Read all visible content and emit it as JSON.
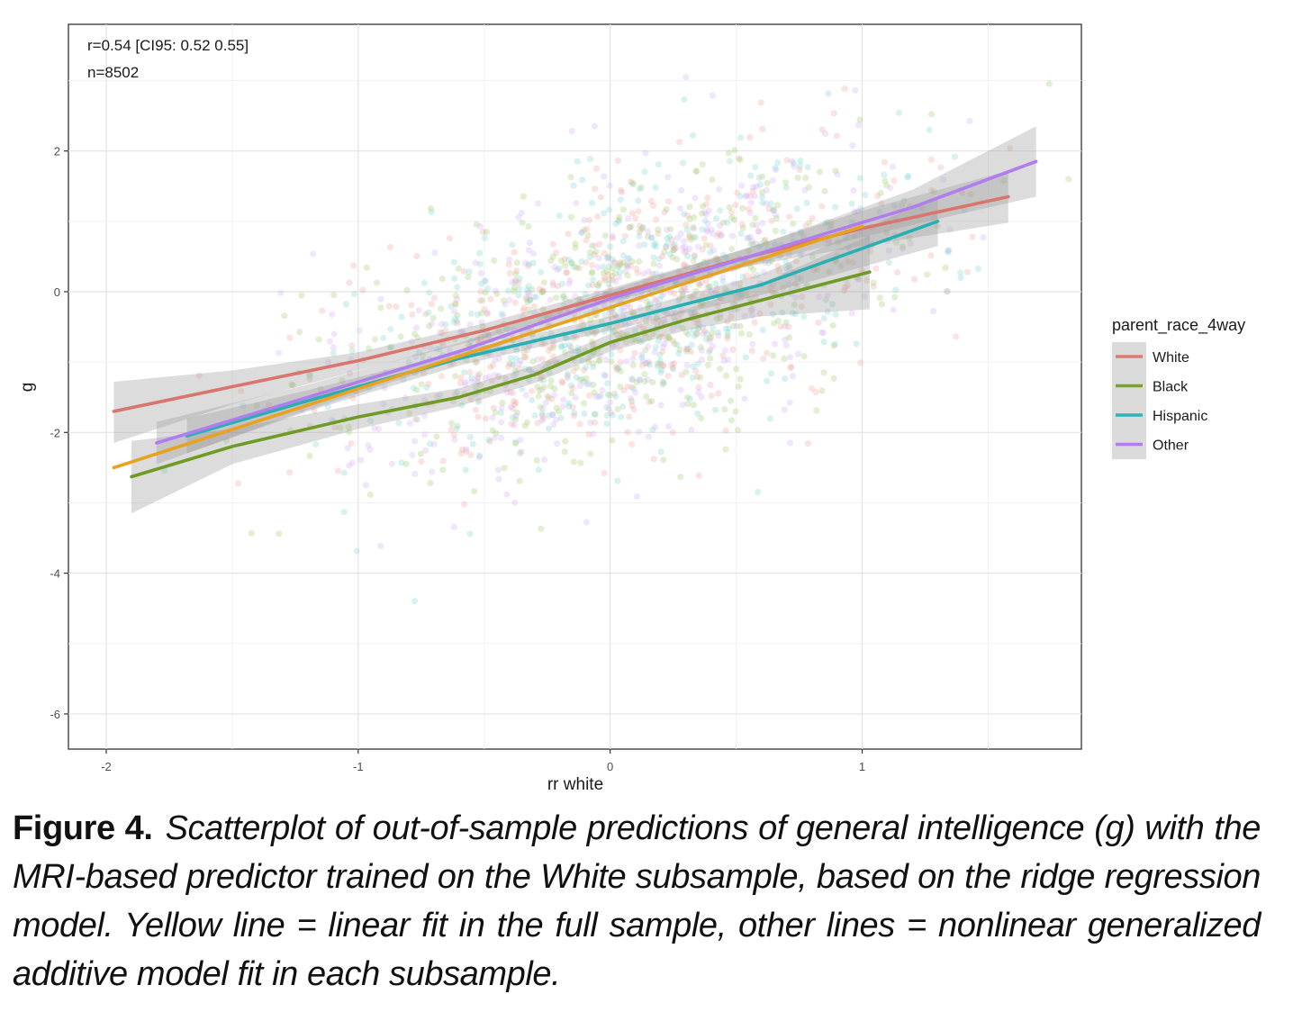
{
  "chart_data": {
    "type": "scatter",
    "xlabel": "rr white",
    "ylabel": "g",
    "xlim": [
      -2.15,
      1.87
    ],
    "ylim": [
      -6.5,
      3.8
    ],
    "x_ticks": [
      -2,
      -1,
      0,
      1
    ],
    "y_ticks": [
      2,
      0,
      -2,
      -4,
      -6
    ],
    "x_tick_labels": [
      "-2",
      "-1",
      "0",
      "1"
    ],
    "y_tick_labels": [
      "2",
      "0",
      "-2",
      "-4",
      "-6"
    ],
    "grid": true,
    "annotations": [
      "r=0.54 [CI95: 0.52 0.55]",
      "n=8502"
    ],
    "legend": {
      "title": "parent_race_4way",
      "position": "right",
      "entries": [
        {
          "name": "White",
          "color": "#e07b72"
        },
        {
          "name": "Black",
          "color": "#7aa321"
        },
        {
          "name": "Hispanic",
          "color": "#2bb5b8"
        },
        {
          "name": "Other",
          "color": "#b57cf2"
        }
      ]
    },
    "series": [
      {
        "name": "White",
        "kind": "gam_fit",
        "color": "#d9756c",
        "x": [
          -1.97,
          -1.5,
          -1.0,
          -0.5,
          0.0,
          0.5,
          1.0,
          1.58
        ],
        "y": [
          -1.7,
          -1.35,
          -0.98,
          -0.55,
          -0.05,
          0.45,
          0.9,
          1.35
        ],
        "band_low": [
          -2.15,
          -1.6,
          -1.12,
          -0.66,
          -0.15,
          0.33,
          0.65,
          0.98
        ],
        "band_high": [
          -1.28,
          -1.12,
          -0.86,
          -0.45,
          0.05,
          0.57,
          1.15,
          1.72
        ]
      },
      {
        "name": "Black",
        "kind": "gam_fit",
        "color": "#6f9b24",
        "x": [
          -1.9,
          -1.5,
          -1.0,
          -0.6,
          -0.3,
          0.0,
          0.3,
          0.6,
          1.03
        ],
        "y": [
          -2.63,
          -2.2,
          -1.78,
          -1.5,
          -1.18,
          -0.72,
          -0.4,
          -0.12,
          0.28
        ],
        "band_low": [
          -3.15,
          -2.45,
          -1.95,
          -1.63,
          -1.3,
          -0.85,
          -0.55,
          -0.35,
          -0.25
        ],
        "band_high": [
          -2.12,
          -1.95,
          -1.6,
          -1.37,
          -1.05,
          -0.6,
          -0.25,
          0.12,
          0.8
        ]
      },
      {
        "name": "Hispanic",
        "kind": "gam_fit",
        "color": "#29aeb2",
        "x": [
          -1.68,
          -1.2,
          -0.6,
          0.0,
          0.6,
          1.3
        ],
        "y": [
          -2.05,
          -1.55,
          -0.95,
          -0.45,
          0.1,
          1.0
        ],
        "band_low": [
          -2.3,
          -1.7,
          -1.05,
          -0.55,
          -0.05,
          0.65
        ],
        "band_high": [
          -1.8,
          -1.4,
          -0.85,
          -0.35,
          0.25,
          1.35
        ]
      },
      {
        "name": "Other",
        "kind": "gam_fit",
        "color": "#b07df0",
        "x": [
          -1.8,
          -1.2,
          -0.6,
          0.0,
          0.6,
          1.2,
          1.69
        ],
        "y": [
          -2.15,
          -1.5,
          -0.85,
          -0.1,
          0.55,
          1.2,
          1.85
        ],
        "band_low": [
          -2.45,
          -1.68,
          -0.97,
          -0.22,
          0.42,
          0.95,
          1.35
        ],
        "band_high": [
          -1.85,
          -1.32,
          -0.73,
          0.02,
          0.68,
          1.45,
          2.35
        ]
      },
      {
        "name": "",
        "kind": "linear_fit_full_sample",
        "color": "#e8a21f",
        "x": [
          -1.97,
          1.0
        ],
        "y": [
          -2.5,
          0.93
        ]
      }
    ],
    "points": {
      "count_shown": 8502,
      "x_mean": 0.05,
      "x_sd": 0.58,
      "correlation": 0.54,
      "group_colors": [
        "#f0a9a3",
        "#a9cc73",
        "#87d6d8",
        "#d2b0f5"
      ]
    }
  },
  "caption": {
    "label": "Figure 4.",
    "text": "Scatterplot of out-of-sample predictions of general intelligence (g) with the MRI-based predictor trained on the White subsample, based on the ridge regression model. Yellow line = linear fit in the full sample, other lines = nonlinear generalized additive model fit in each subsample."
  }
}
